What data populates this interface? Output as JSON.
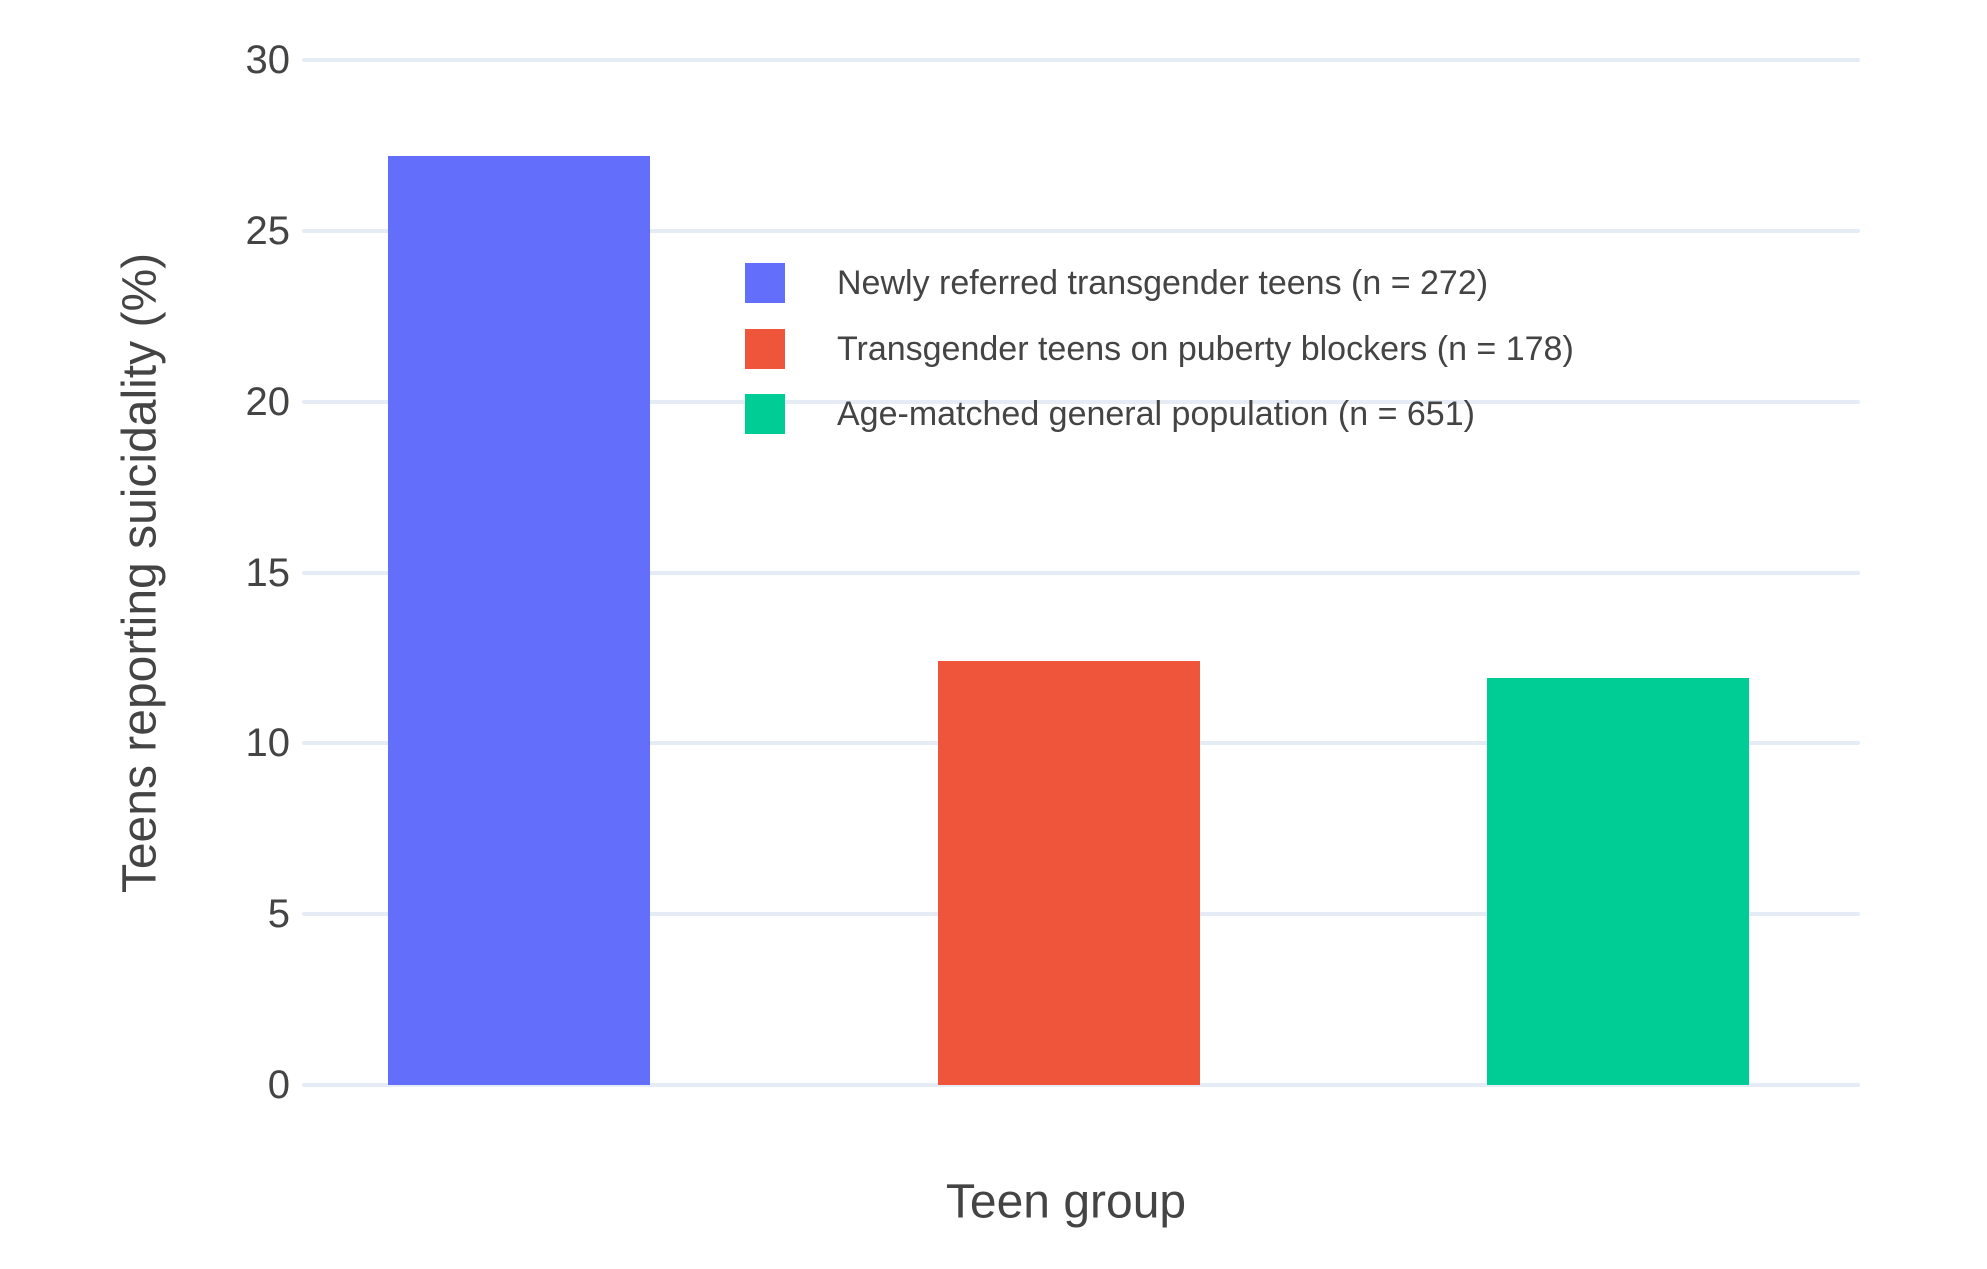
{
  "chart_data": {
    "type": "bar",
    "title": "",
    "xlabel": "Teen group",
    "ylabel": "Teens reporting suicidality (%)",
    "categories": [
      "Newly referred transgender teens (n = 272)",
      "Transgender teens on puberty blockers (n = 178)",
      "Age-matched general population (n = 651)"
    ],
    "values": [
      27.2,
      12.4,
      11.9
    ],
    "bar_colors": [
      "#636EFA",
      "#EF553B",
      "#00CC96"
    ],
    "ylim": [
      0,
      30
    ],
    "yticks": [
      0,
      5,
      10,
      15,
      20,
      25,
      30
    ],
    "grid": true,
    "legend_position": "inside top, left-anchored",
    "legend": [
      {
        "label": "Newly referred transgender teens (n = 272)",
        "color": "#636EFA"
      },
      {
        "label": "Transgender teens on puberty blockers (n = 178)",
        "color": "#EF553B"
      },
      {
        "label": "Age-matched general population (n = 651)",
        "color": "#00CC96"
      }
    ]
  },
  "colors": {
    "background": "#FFFFFF",
    "gridline": "#E5ECF6",
    "text": "#444444"
  }
}
